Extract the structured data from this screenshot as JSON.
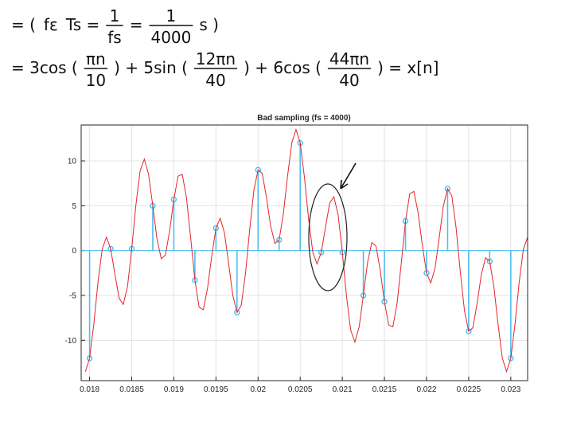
{
  "equations": {
    "lines": [
      [
        "= (",
        "fε",
        "Ts =",
        {
          "num": "1",
          "den": "fs"
        },
        "=",
        {
          "num": "1",
          "den": "4000"
        },
        "s )"
      ],
      [
        "= 3cos (",
        {
          "num": "πn",
          "den": "10"
        },
        ") + 5sin (",
        {
          "num": "12πn",
          "den": "40"
        },
        ") + 6cos (",
        {
          "num": "44πn",
          "den": "40"
        },
        ") = x[n]"
      ]
    ]
  },
  "chart_data": {
    "type": "stem",
    "title": "Bad sampling (fs = 4000)",
    "xlim": [
      0.0179,
      0.0232
    ],
    "ylim": [
      -14.5,
      14
    ],
    "xticks": [
      0.018,
      0.0185,
      0.019,
      0.0195,
      0.02,
      0.0205,
      0.021,
      0.0215,
      0.022,
      0.0225,
      0.023
    ],
    "yticks": [
      -10,
      -5,
      0,
      5,
      10
    ],
    "grid": true,
    "series": [
      {
        "type": "line",
        "color": "#e3262b",
        "x": [
          0.01795,
          0.018,
          0.01805,
          0.0181,
          0.01815,
          0.0182,
          0.01825,
          0.0183,
          0.01835,
          0.0184,
          0.01845,
          0.0185,
          0.01855,
          0.0186,
          0.01865,
          0.0187,
          0.01875,
          0.0188,
          0.01885,
          0.0189,
          0.01895,
          0.019,
          0.01905,
          0.0191,
          0.01915,
          0.0192,
          0.01925,
          0.0193,
          0.01935,
          0.0194,
          0.01945,
          0.0195,
          0.01955,
          0.0196,
          0.01965,
          0.0197,
          0.01975,
          0.0198,
          0.01985,
          0.0199,
          0.01995,
          0.02,
          0.02005,
          0.0201,
          0.02015,
          0.0202,
          0.02025,
          0.0203,
          0.02035,
          0.0204,
          0.02045,
          0.0205,
          0.02055,
          0.0206,
          0.02065,
          0.0207,
          0.02075,
          0.0208,
          0.02085,
          0.0209,
          0.02095,
          0.021,
          0.02105,
          0.0211,
          0.02115,
          0.0212,
          0.02125,
          0.0213,
          0.02135,
          0.0214,
          0.02145,
          0.0215,
          0.02155,
          0.0216,
          0.02165,
          0.0217,
          0.02175,
          0.0218,
          0.02185,
          0.0219,
          0.02195,
          0.022,
          0.02205,
          0.0221,
          0.02215,
          0.0222,
          0.02225,
          0.0223,
          0.02235,
          0.0224,
          0.02245,
          0.0225,
          0.02255,
          0.0226,
          0.02265,
          0.0227,
          0.02275,
          0.0228,
          0.02285,
          0.0229,
          0.02295,
          0.023,
          0.02305,
          0.0231,
          0.02315,
          0.0232
        ],
        "values": [
          -13.5,
          -12,
          -8.2,
          -3.5,
          0.2,
          1.5,
          0.2,
          -2.6,
          -5.3,
          -6,
          -4,
          0.2,
          5.1,
          8.9,
          10.2,
          8.5,
          5,
          1.3,
          -0.9,
          -0.5,
          2.2,
          5.7,
          8.3,
          8.5,
          5.9,
          1.4,
          -3.3,
          -6.3,
          -6.6,
          -4.2,
          -0.6,
          2.5,
          3.6,
          2,
          -1.4,
          -5,
          -6.9,
          -6.1,
          -2.6,
          2.3,
          6.7,
          9,
          8.6,
          5.9,
          2.7,
          0.8,
          1.2,
          4.1,
          8.3,
          12,
          13.5,
          12,
          8.2,
          3.5,
          -0.2,
          -1.5,
          -0.2,
          2.6,
          5.3,
          6,
          4,
          -0.2,
          -5.1,
          -8.9,
          -10.2,
          -8.5,
          -5,
          -1.3,
          0.9,
          0.5,
          -2.2,
          -5.7,
          -8.3,
          -8.5,
          -5.9,
          -1.4,
          3.3,
          6.3,
          6.6,
          4.2,
          0.6,
          -2.5,
          -3.6,
          -2,
          1.4,
          5,
          6.9,
          6.1,
          2.6,
          -2.3,
          -6.7,
          -9,
          -8.6,
          -5.9,
          -2.7,
          -0.8,
          -1.2,
          -4.1,
          -8.3,
          -12,
          -13.5,
          -12,
          -8.2,
          -3.5,
          0.2,
          1.5
        ]
      },
      {
        "type": "stem",
        "color": "#4dbeee",
        "x": [
          0.018,
          0.01825,
          0.0185,
          0.01875,
          0.019,
          0.01925,
          0.0195,
          0.01975,
          0.02,
          0.02025,
          0.0205,
          0.02075,
          0.021,
          0.02125,
          0.0215,
          0.02175,
          0.022,
          0.02225,
          0.0225,
          0.02275,
          0.023
        ],
        "values": [
          -12,
          0.2,
          0.2,
          5,
          5.7,
          -3.3,
          2.5,
          -6.9,
          9,
          1.2,
          12,
          -0.2,
          -0.2,
          -5,
          -5.7,
          3.3,
          -2.5,
          6.9,
          -9,
          -1.2,
          -12
        ]
      }
    ]
  }
}
